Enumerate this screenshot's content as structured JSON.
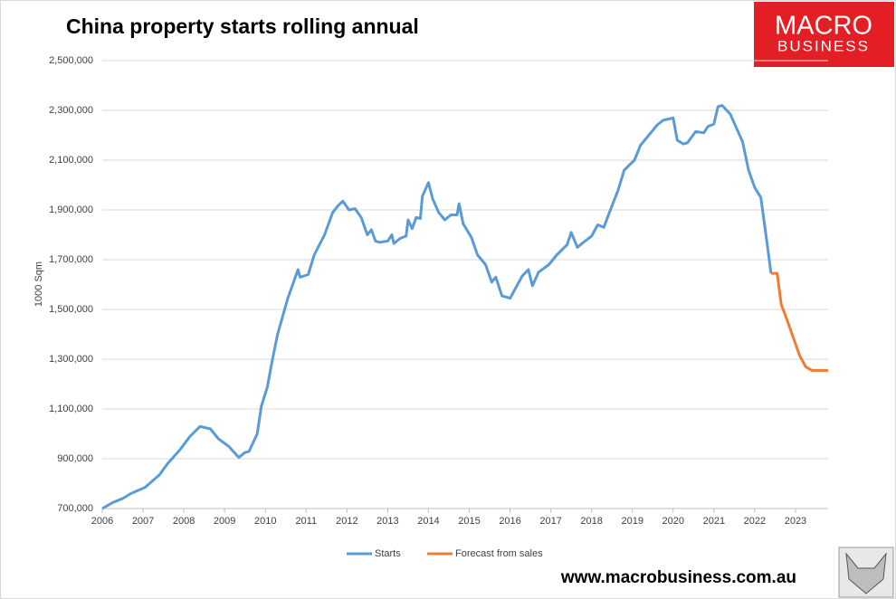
{
  "chart_data": {
    "type": "line",
    "title": "China property starts rolling annual",
    "ylabel": "1000 Sqm",
    "xlim": [
      2006,
      2023.8
    ],
    "xticks": [
      2006,
      2007,
      2008,
      2009,
      2010,
      2011,
      2012,
      2013,
      2014,
      2015,
      2016,
      2017,
      2018,
      2019,
      2020,
      2021,
      2022,
      2023
    ],
    "ylim": [
      700000,
      2500000
    ],
    "yticks": [
      {
        "value": 700000,
        "label": "700,000"
      },
      {
        "value": 900000,
        "label": "900,000"
      },
      {
        "value": 1100000,
        "label": "1,100,000"
      },
      {
        "value": 1300000,
        "label": "1,300,000"
      },
      {
        "value": 1500000,
        "label": "1,500,000"
      },
      {
        "value": 1700000,
        "label": "1,700,000"
      },
      {
        "value": 1900000,
        "label": "1,900,000"
      },
      {
        "value": 2100000,
        "label": "2,100,000"
      },
      {
        "value": 2300000,
        "label": "2,300,000"
      },
      {
        "value": 2500000,
        "label": "2,500,000"
      }
    ],
    "grid": true,
    "legend": "bottom",
    "series": [
      {
        "name": "Starts",
        "color": "#5b9bd5",
        "x": [
          2006.0,
          2006.27,
          2006.5,
          2006.7,
          2007.05,
          2007.4,
          2007.6,
          2007.9,
          2008.15,
          2008.4,
          2008.65,
          2008.85,
          2009.1,
          2009.35,
          2009.5,
          2009.6,
          2009.8,
          2009.9,
          2010.05,
          2010.15,
          2010.3,
          2010.55,
          2010.8,
          2010.85,
          2011.05,
          2011.2,
          2011.45,
          2011.65,
          2011.8,
          2011.9,
          2012.05,
          2012.2,
          2012.35,
          2012.5,
          2012.6,
          2012.7,
          2012.8,
          2013.0,
          2013.1,
          2013.15,
          2013.3,
          2013.45,
          2013.5,
          2013.6,
          2013.7,
          2013.8,
          2013.85,
          2014.0,
          2014.1,
          2014.25,
          2014.4,
          2014.55,
          2014.7,
          2014.75,
          2014.85,
          2015.05,
          2015.2,
          2015.4,
          2015.55,
          2015.65,
          2015.8,
          2016.0,
          2016.15,
          2016.3,
          2016.45,
          2016.55,
          2016.7,
          2016.95,
          2017.15,
          2017.4,
          2017.5,
          2017.65,
          2017.8,
          2018.0,
          2018.15,
          2018.3,
          2018.45,
          2018.65,
          2018.8,
          2019.05,
          2019.2,
          2019.4,
          2019.6,
          2019.75,
          2020.0,
          2020.1,
          2020.25,
          2020.35,
          2020.55,
          2020.75,
          2020.85,
          2021.0,
          2021.1,
          2021.2,
          2021.4,
          2021.55,
          2021.7,
          2021.85,
          2022.0,
          2022.15,
          2022.3,
          2022.4
        ],
        "values": [
          700000,
          725000,
          740000,
          760000,
          785000,
          835000,
          880000,
          935000,
          990000,
          1030000,
          1020000,
          980000,
          950000,
          905000,
          925000,
          930000,
          1000000,
          1110000,
          1190000,
          1280000,
          1400000,
          1545000,
          1660000,
          1630000,
          1640000,
          1720000,
          1800000,
          1890000,
          1920000,
          1935000,
          1900000,
          1905000,
          1870000,
          1800000,
          1820000,
          1775000,
          1770000,
          1775000,
          1800000,
          1765000,
          1785000,
          1795000,
          1860000,
          1825000,
          1870000,
          1865000,
          1955000,
          2010000,
          1945000,
          1890000,
          1860000,
          1880000,
          1880000,
          1925000,
          1845000,
          1790000,
          1720000,
          1680000,
          1610000,
          1630000,
          1555000,
          1545000,
          1590000,
          1635000,
          1660000,
          1595000,
          1650000,
          1680000,
          1720000,
          1760000,
          1810000,
          1750000,
          1770000,
          1795000,
          1840000,
          1830000,
          1895000,
          1980000,
          2060000,
          2100000,
          2160000,
          2200000,
          2240000,
          2260000,
          2270000,
          2180000,
          2165000,
          2170000,
          2215000,
          2210000,
          2235000,
          2245000,
          2315000,
          2320000,
          2285000,
          2230000,
          2175000,
          2060000,
          1990000,
          1950000,
          1770000,
          1645000
        ]
      },
      {
        "name": "Forecast from sales",
        "color": "#ed7d31",
        "x": [
          2022.4,
          2022.55,
          2022.65,
          2022.8,
          2022.95,
          2023.1,
          2023.25,
          2023.4,
          2023.8
        ],
        "values": [
          1645000,
          1645000,
          1520000,
          1455000,
          1385000,
          1315000,
          1270000,
          1255000,
          1255000
        ]
      }
    ]
  },
  "website": "www.macrobusiness.com.au",
  "logo": {
    "line1": "MACRO",
    "line2": "BUSINESS"
  }
}
